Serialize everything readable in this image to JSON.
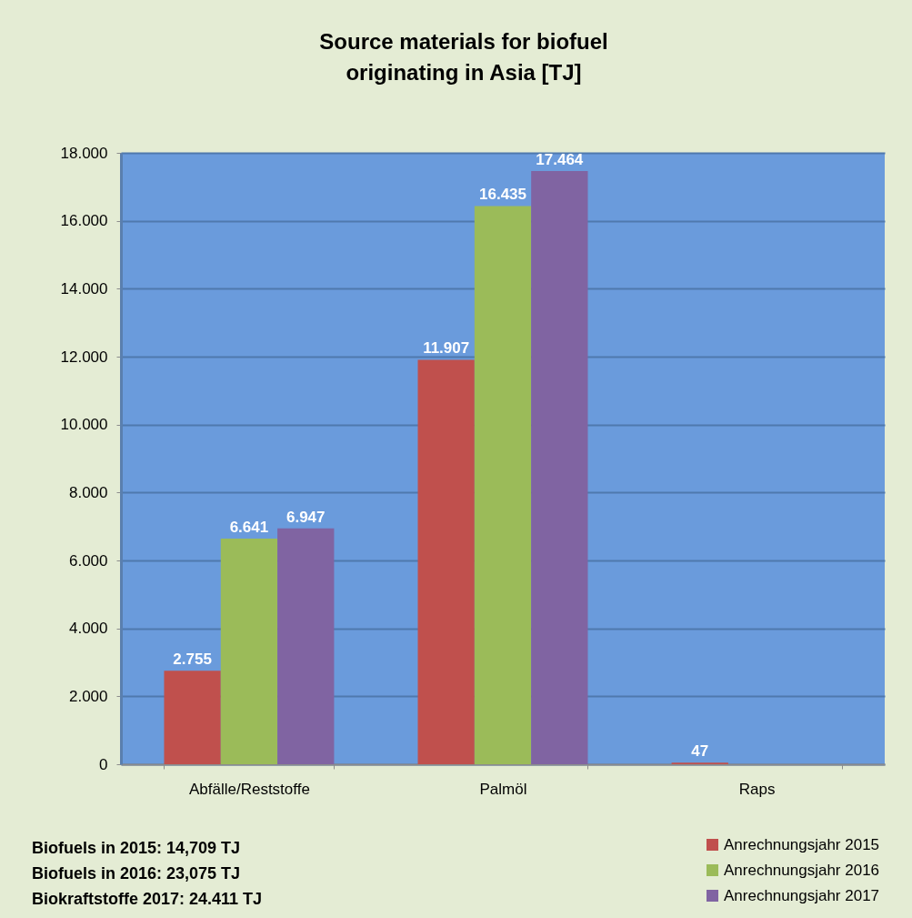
{
  "chart_data": {
    "type": "bar",
    "title": "Source materials for biofuel\noriginating in Asia [TJ]",
    "categories": [
      "Abfälle/Reststoffe",
      "Palmöl",
      "Raps"
    ],
    "series": [
      {
        "name": "Anrechnungsjahr 2015",
        "color": "#c0504d",
        "values": [
          2755,
          11907,
          47
        ],
        "value_labels": [
          "2.755",
          "11.907",
          "47"
        ]
      },
      {
        "name": "Anrechnungsjahr 2016",
        "color": "#9bbb59",
        "values": [
          6641,
          16435,
          null
        ],
        "value_labels": [
          "6.641",
          "16.435",
          null
        ]
      },
      {
        "name": "Anrechnungsjahr 2017",
        "color": "#8064a2",
        "values": [
          6947,
          17464,
          null
        ],
        "value_labels": [
          "6.947",
          "17.464",
          null
        ]
      }
    ],
    "ylim": [
      0,
      18000
    ],
    "yticks": [
      0,
      {
        "value": 2000,
        "label": "2.000"
      },
      {
        "value": 4000,
        "label": "4.000"
      },
      {
        "value": 6000,
        "label": "6.000"
      },
      {
        "value": 8000,
        "label": "8.000"
      },
      {
        "value": 10000,
        "label": "10.000"
      },
      {
        "value": 12000,
        "label": "12.000"
      },
      {
        "value": 14000,
        "label": "14.000"
      },
      {
        "value": 16000,
        "label": "16.000"
      },
      {
        "value": 18000,
        "label": "18.000"
      }
    ],
    "grid": "y",
    "legend": "bottom right",
    "annotations": [
      "Biofuels in 2015: 14,709 TJ",
      "Biofuels in 2016: 23,075 TJ",
      "Biokraftstoffe 2017: 24.411 TJ"
    ]
  }
}
